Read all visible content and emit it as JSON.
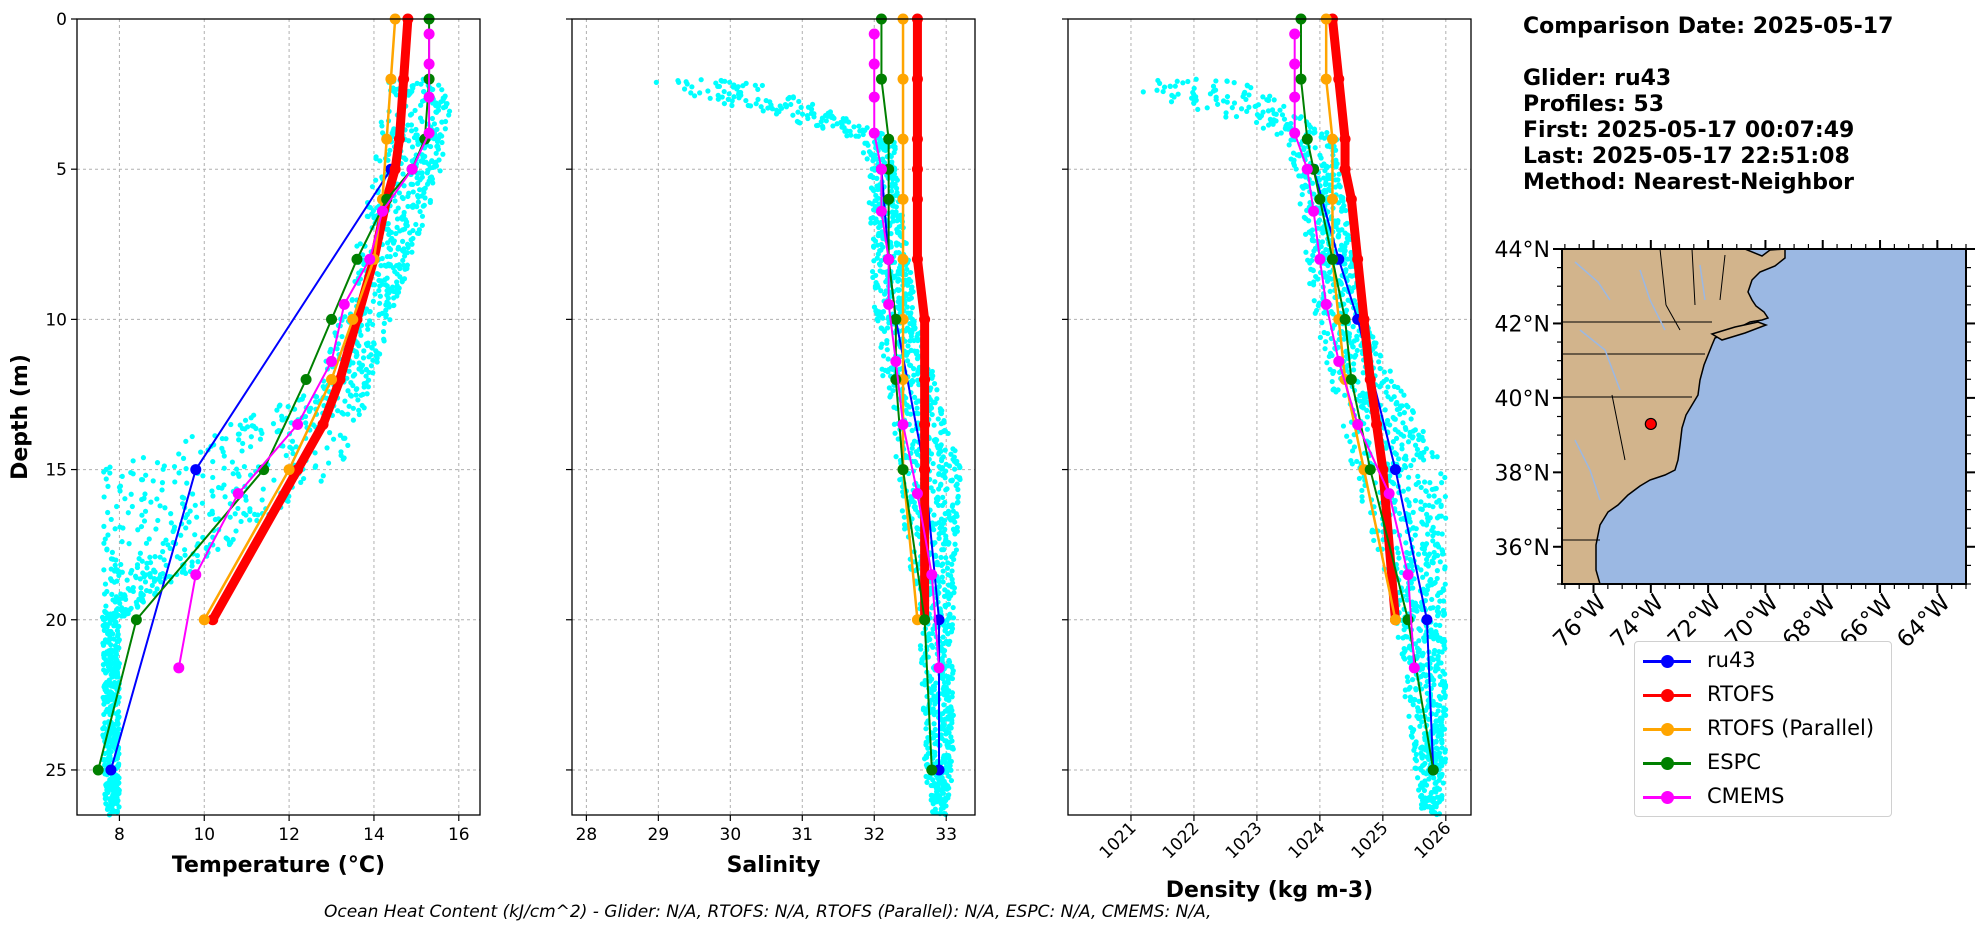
{
  "info": {
    "title": "Comparison Date: 2025-05-17",
    "glider": "Glider: ru43",
    "profiles": "Profiles: 53",
    "first": "First: 2025-05-17 00:07:49",
    "last": "Last: 2025-05-17 22:51:08",
    "method": "Method: Nearest-Neighbor"
  },
  "legend": [
    {
      "name": "ru43",
      "color": "#0000ff"
    },
    {
      "name": "RTOFS",
      "color": "#ff0000"
    },
    {
      "name": "RTOFS (Parallel)",
      "color": "#ffa500"
    },
    {
      "name": "ESPC",
      "color": "#008000"
    },
    {
      "name": "CMEMS",
      "color": "#ff00ff"
    }
  ],
  "footer": "Ocean Heat Content (kJ/cm^2) - Glider: N/A,  RTOFS: N/A,  RTOFS (Parallel): N/A,  ESPC: N/A,  CMEMS: N/A,",
  "colors": {
    "glider_scatter": "#00ffff",
    "land": "#d2b48c",
    "ocean": "#9bb8e3"
  },
  "map": {
    "lat_ticks": [
      "44°N",
      "42°N",
      "40°N",
      "38°N",
      "36°N"
    ],
    "lon_ticks": [
      "76°W",
      "74°W",
      "72°W",
      "70°W",
      "68°W",
      "66°W",
      "64°W"
    ],
    "lat_values": [
      44,
      42,
      40,
      38,
      36
    ],
    "lon_values": [
      -76,
      -74,
      -72,
      -70,
      -68,
      -66,
      -64
    ],
    "extent": {
      "lon": [
        -77.1,
        -63.0
      ],
      "lat": [
        35.0,
        44.0
      ]
    },
    "marker": {
      "lon": -74.0,
      "lat": 39.3
    }
  },
  "chart_data": [
    {
      "type": "line",
      "xlabel": "Temperature (°C)",
      "ylabel": "Depth (m)",
      "xlim": [
        7.0,
        16.5
      ],
      "ylim": [
        26.5,
        0
      ],
      "xticks": [
        8,
        10,
        12,
        14,
        16
      ],
      "yticks": [
        0,
        5,
        10,
        15,
        20,
        25
      ],
      "grid": true,
      "glider_scatter_envelope": {
        "depth": [
          2,
          5,
          10,
          12.5,
          15,
          20,
          25,
          26.5
        ],
        "min": [
          14.3,
          14.0,
          13.2,
          12.4,
          7.6,
          7.6,
          7.6,
          7.7
        ],
        "max": [
          15.9,
          15.6,
          14.4,
          13.9,
          13.2,
          8.0,
          8.0,
          8.0
        ]
      },
      "series": [
        {
          "name": "ru43",
          "color": "#0000ff",
          "width": 2,
          "x": [
            14.4,
            9.8,
            7.8
          ],
          "y": [
            5,
            15,
            25
          ]
        },
        {
          "name": "RTOFS",
          "color": "#ff0000",
          "width": 9,
          "x": [
            14.8,
            14.7,
            14.6,
            14.5,
            14.3,
            14.0,
            13.6,
            13.2,
            12.8,
            12.2,
            10.2
          ],
          "y": [
            0,
            2,
            4,
            5,
            6,
            8,
            10,
            12,
            13.5,
            15,
            20
          ]
        },
        {
          "name": "RTOFS (Parallel)",
          "color": "#ffa500",
          "width": 2.5,
          "x": [
            14.5,
            14.4,
            14.3,
            14.2,
            14.0,
            13.5,
            13.0,
            12.0,
            10.0
          ],
          "y": [
            0,
            2,
            4,
            6,
            8,
            10,
            12,
            15,
            20
          ]
        },
        {
          "name": "ESPC",
          "color": "#008000",
          "width": 2,
          "x": [
            15.3,
            15.3,
            15.2,
            14.9,
            14.3,
            13.6,
            13.0,
            12.4,
            11.4,
            8.4,
            7.5
          ],
          "y": [
            0,
            2,
            4,
            5,
            6,
            8,
            10,
            12,
            15,
            20,
            25
          ]
        },
        {
          "name": "CMEMS",
          "color": "#ff00ff",
          "width": 2,
          "x": [
            15.3,
            15.3,
            15.3,
            15.3,
            14.9,
            14.2,
            13.9,
            13.3,
            13.0,
            12.2,
            10.8,
            9.8,
            9.4
          ],
          "y": [
            0.5,
            1.5,
            2.6,
            3.8,
            5.0,
            6.4,
            8.0,
            9.5,
            11.4,
            13.5,
            15.8,
            18.5,
            21.6
          ]
        }
      ]
    },
    {
      "type": "line",
      "xlabel": "Salinity",
      "xlim": [
        27.8,
        33.4
      ],
      "ylim": [
        26.5,
        0
      ],
      "xticks": [
        28,
        29,
        30,
        31,
        32,
        33
      ],
      "yticks": [
        0,
        5,
        10,
        15,
        20,
        25
      ],
      "grid": true,
      "glider_scatter_envelope": {
        "depth": [
          2,
          4,
          5,
          10,
          15,
          20,
          25,
          26.5
        ],
        "min": [
          28.6,
          31.8,
          31.9,
          32.0,
          32.3,
          32.6,
          32.7,
          32.8
        ],
        "max": [
          30.3,
          32.3,
          32.3,
          32.6,
          33.2,
          33.1,
          33.1,
          33.0
        ]
      },
      "series": [
        {
          "name": "ru43",
          "color": "#0000ff",
          "width": 2,
          "x": [
            32.1,
            32.2,
            32.3,
            32.7,
            32.9,
            32.9
          ],
          "y": [
            5,
            8,
            10,
            15,
            20,
            25
          ]
        },
        {
          "name": "RTOFS",
          "color": "#ff0000",
          "width": 9,
          "x": [
            32.6,
            32.6,
            32.6,
            32.6,
            32.6,
            32.6,
            32.7,
            32.7,
            32.7,
            32.7,
            32.7
          ],
          "y": [
            0,
            2,
            4,
            5,
            6,
            8,
            10,
            12,
            13.5,
            15,
            20
          ]
        },
        {
          "name": "RTOFS (Parallel)",
          "color": "#ffa500",
          "width": 2.5,
          "x": [
            32.4,
            32.4,
            32.4,
            32.4,
            32.4,
            32.4,
            32.4,
            32.4,
            32.6
          ],
          "y": [
            0,
            2,
            4,
            6,
            8,
            10,
            12,
            15,
            20
          ]
        },
        {
          "name": "ESPC",
          "color": "#008000",
          "width": 2,
          "x": [
            32.1,
            32.1,
            32.2,
            32.2,
            32.2,
            32.2,
            32.3,
            32.3,
            32.4,
            32.7,
            32.8
          ],
          "y": [
            0,
            2,
            4,
            5,
            6,
            8,
            10,
            12,
            15,
            20,
            25
          ]
        },
        {
          "name": "CMEMS",
          "color": "#ff00ff",
          "width": 2,
          "x": [
            32.0,
            32.0,
            32.0,
            32.0,
            32.1,
            32.1,
            32.2,
            32.2,
            32.3,
            32.4,
            32.6,
            32.8,
            32.9
          ],
          "y": [
            0.5,
            1.5,
            2.6,
            3.8,
            5.0,
            6.4,
            8.0,
            9.5,
            11.4,
            13.5,
            15.8,
            18.5,
            21.6
          ]
        }
      ]
    },
    {
      "type": "line",
      "xlabel": "Density (kg m-3)",
      "xlim": [
        1020.0,
        1026.4
      ],
      "ylim": [
        26.5,
        0
      ],
      "xticks": [
        1021,
        1022,
        1023,
        1024,
        1025,
        1026
      ],
      "yticks": [
        0,
        5,
        10,
        15,
        20,
        25
      ],
      "grid": true,
      "glider_scatter_envelope": {
        "depth": [
          2,
          4,
          5,
          10,
          15,
          20,
          25,
          26.5
        ],
        "min": [
          1020.5,
          1023.4,
          1023.6,
          1023.9,
          1024.5,
          1025.2,
          1025.5,
          1025.6
        ],
        "max": [
          1022.8,
          1024.3,
          1024.3,
          1024.7,
          1026.0,
          1026.0,
          1026.0,
          1025.9
        ]
      },
      "series": [
        {
          "name": "ru43",
          "color": "#0000ff",
          "width": 2,
          "x": [
            1023.9,
            1024.3,
            1024.6,
            1025.2,
            1025.7,
            1025.8
          ],
          "y": [
            5,
            8,
            10,
            15,
            20,
            25
          ]
        },
        {
          "name": "RTOFS",
          "color": "#ff0000",
          "width": 9,
          "x": [
            1024.2,
            1024.3,
            1024.4,
            1024.4,
            1024.5,
            1024.6,
            1024.7,
            1024.8,
            1024.9,
            1025.0,
            1025.2
          ],
          "y": [
            0,
            2,
            4,
            5,
            6,
            8,
            10,
            12,
            13.5,
            15,
            20
          ]
        },
        {
          "name": "RTOFS (Parallel)",
          "color": "#ffa500",
          "width": 2.5,
          "x": [
            1024.1,
            1024.1,
            1024.2,
            1024.2,
            1024.2,
            1024.3,
            1024.4,
            1024.7,
            1025.2
          ],
          "y": [
            0,
            2,
            4,
            6,
            8,
            10,
            12,
            15,
            20
          ]
        },
        {
          "name": "ESPC",
          "color": "#008000",
          "width": 2,
          "x": [
            1023.7,
            1023.7,
            1023.8,
            1023.9,
            1024.0,
            1024.2,
            1024.4,
            1024.5,
            1024.8,
            1025.4,
            1025.8
          ],
          "y": [
            0,
            2,
            4,
            5,
            6,
            8,
            10,
            12,
            15,
            20,
            25
          ]
        },
        {
          "name": "CMEMS",
          "color": "#ff00ff",
          "width": 2,
          "x": [
            1023.6,
            1023.6,
            1023.6,
            1023.6,
            1023.8,
            1023.9,
            1024.0,
            1024.1,
            1024.3,
            1024.6,
            1025.1,
            1025.4,
            1025.5
          ],
          "y": [
            0.5,
            1.5,
            2.6,
            3.8,
            5.0,
            6.4,
            8.0,
            9.5,
            11.4,
            13.5,
            15.8,
            18.5,
            21.6
          ]
        }
      ]
    }
  ]
}
